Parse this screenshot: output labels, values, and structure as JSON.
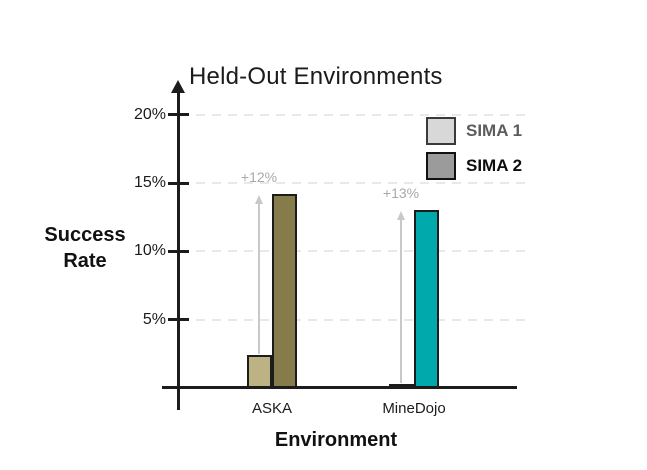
{
  "figure": {
    "title": "Held-Out Environments",
    "ylabel_line1": "Success",
    "ylabel_line2": "Rate",
    "xlabel": "Environment"
  },
  "legend": {
    "position": "top-right",
    "items": [
      {
        "label": "SIMA 1",
        "swatch_color": "#d8d8d8",
        "swatch_border": "#3a3a3a",
        "text_color": "#5c5c5c"
      },
      {
        "label": "SIMA 2",
        "swatch_color": "#9b9b9b",
        "swatch_border": "#111111",
        "text_color": "#0d0d0d"
      }
    ]
  },
  "chart_data": {
    "type": "bar",
    "title": "Held-Out Environments",
    "xlabel": "Environment",
    "ylabel": "Success Rate",
    "categories": [
      "ASKA",
      "MineDojo"
    ],
    "series": [
      {
        "name": "SIMA 1",
        "values": [
          2.4,
          0.3
        ],
        "bar_colors": [
          "#bcb283",
          "#bee0dd"
        ]
      },
      {
        "name": "SIMA 2",
        "values": [
          14.2,
          13.0
        ],
        "bar_colors": [
          "#867c4b",
          "#00a9ab"
        ]
      }
    ],
    "annotations": [
      {
        "category": "ASKA",
        "label": "+12%"
      },
      {
        "category": "MineDojo",
        "label": "+13%"
      }
    ],
    "y_ticks": [
      5,
      10,
      15,
      20
    ],
    "y_tick_labels": [
      "5%",
      "10%",
      "15%",
      "20%"
    ],
    "ylim": [
      0,
      21
    ],
    "grid": "horizontal-dashed",
    "legend_position": "top-right"
  },
  "colors": {
    "axis": "#1c1c1c",
    "bar_border": "#1c1c1c",
    "gridline": "#e8e8e8",
    "delta_arrow": "#c8c8c8",
    "delta_label": "#a9a9a9",
    "background": "#ffffff",
    "text": "#1b1b1b"
  }
}
